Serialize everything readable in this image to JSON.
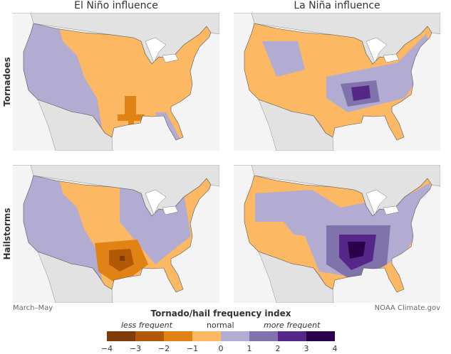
{
  "columns": [
    "El Niño influence",
    "La Niña influence"
  ],
  "rows": [
    "Tornadoes",
    "Hailstorms"
  ],
  "footnote_left": "March–May",
  "footnote_right": "NOAA Climate.gov",
  "legend": {
    "title": "Tornado/hail frequency index",
    "less": "less frequent",
    "normal": "normal",
    "more": "more frequent",
    "ticks": [
      "−4",
      "−3",
      "−2",
      "−1",
      "0",
      "1",
      "2",
      "3",
      "4"
    ],
    "colors": [
      "#7f3b08",
      "#b35806",
      "#e08214",
      "#fdb863",
      "#b2abd2",
      "#8073ac",
      "#542788",
      "#2d004b"
    ]
  },
  "panels": [
    {
      "influence": "El Niño",
      "hazard": "Tornadoes"
    },
    {
      "influence": "La Niña",
      "hazard": "Tornadoes"
    },
    {
      "influence": "El Niño",
      "hazard": "Hailstorms"
    },
    {
      "influence": "La Niña",
      "hazard": "Hailstorms"
    }
  ]
}
